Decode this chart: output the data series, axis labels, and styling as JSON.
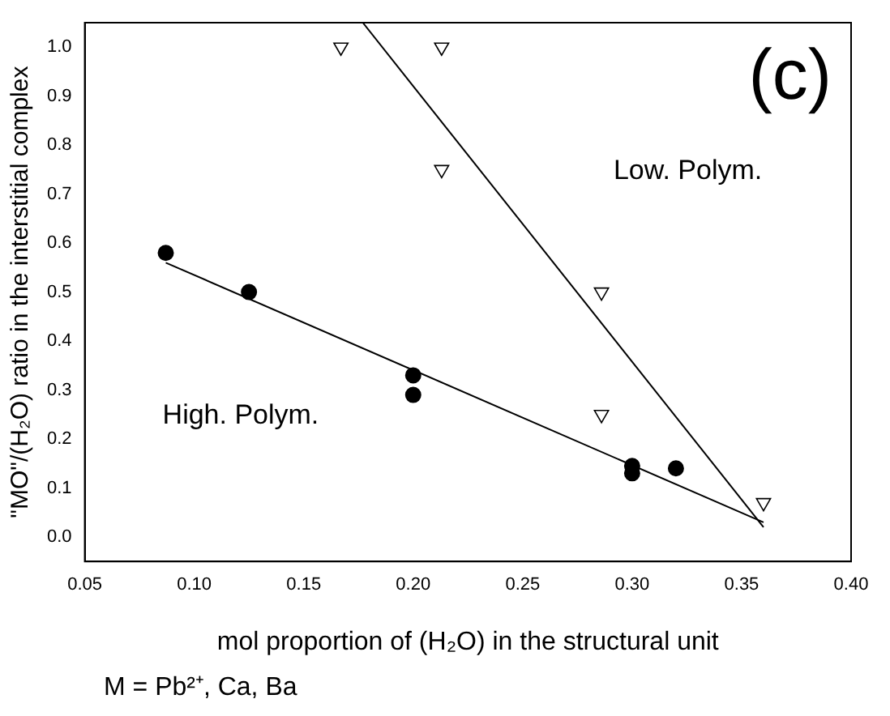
{
  "chart_data": {
    "type": "scatter",
    "xlabel": "mol proportion of (H₂O) in the structural unit",
    "ylabel": "\"MO\"/(H₂O) ratio in the interstitial complex",
    "xlim": [
      0.05,
      0.4
    ],
    "ylim": [
      -0.05,
      1.05
    ],
    "xticks": [
      {
        "value": 0.05,
        "label": "0.05"
      },
      {
        "value": 0.1,
        "label": "0.10"
      },
      {
        "value": 0.15,
        "label": "0.15"
      },
      {
        "value": 0.2,
        "label": "0.20"
      },
      {
        "value": 0.25,
        "label": "0.25"
      },
      {
        "value": 0.3,
        "label": "0.30"
      },
      {
        "value": 0.35,
        "label": "0.35"
      },
      {
        "value": 0.4,
        "label": "0.40"
      }
    ],
    "yticks": [
      {
        "value": 0,
        "label": "0.0"
      },
      0.1,
      0.2,
      0.3,
      0.4,
      0.5,
      0.6,
      0.7,
      0.8,
      0.9,
      {
        "value": 1,
        "label": "1.0"
      }
    ],
    "grid": false,
    "legend": false,
    "series": [
      {
        "type": "scatter",
        "marker": "circle",
        "color": "#000000",
        "x": [
          0.087,
          0.125,
          0.2,
          0.2,
          0.3,
          0.3,
          0.32
        ],
        "values": [
          0.58,
          0.5,
          0.33,
          0.29,
          0.145,
          0.13,
          0.14
        ]
      },
      {
        "type": "scatter",
        "marker": "triangle",
        "color": "#000000",
        "x": [
          0.167,
          0.213,
          0.213,
          0.286,
          0.286,
          0.36
        ],
        "values": [
          1.0,
          1.0,
          0.75,
          0.5,
          0.25,
          0.07
        ]
      },
      {
        "type": "line",
        "marker": "none",
        "color": "#000000",
        "x": [
          0.087,
          0.36
        ],
        "values": [
          0.56,
          0.03
        ]
      },
      {
        "type": "line",
        "marker": "none",
        "color": "#000000",
        "x": [
          0.177,
          0.36
        ],
        "values": [
          1.05,
          0.02
        ]
      }
    ],
    "annotations": [
      "(c)",
      "Low. Polym.",
      "High. Polym.",
      "M = Pb²⁺, Ca, Ba"
    ]
  }
}
